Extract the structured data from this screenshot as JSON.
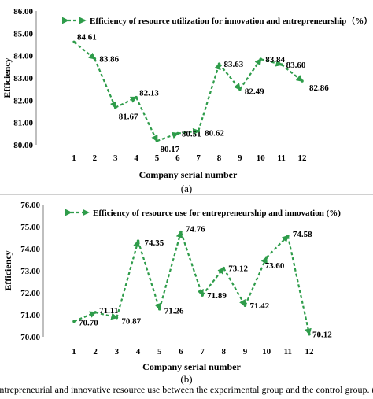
{
  "chart_data": [
    {
      "type": "line",
      "panel": "(a)",
      "legend": "Efficiency of resource utilization for innovation and entrepreneurship（%）",
      "legend_position": "top",
      "xlabel": "Company serial number",
      "ylabel": "Efficiency",
      "ylim": [
        80.0,
        86.0
      ],
      "yticks": [
        "80.00",
        "81.00",
        "82.00",
        "83.00",
        "84.00",
        "85.00",
        "86.00"
      ],
      "x": [
        "1",
        "2",
        "3",
        "4",
        "5",
        "6",
        "7",
        "8",
        "9",
        "10",
        "11",
        "12"
      ],
      "values": [
        84.61,
        83.86,
        81.67,
        82.13,
        80.17,
        80.51,
        80.62,
        83.63,
        82.49,
        83.84,
        83.6,
        82.86
      ],
      "labels": [
        "84.61",
        "83.86",
        "81.67",
        "82.13",
        "80.17",
        "80.51",
        "80.62",
        "83.63",
        "82.49",
        "83.84",
        "83.60",
        "82.86"
      ],
      "line_color": "#2e9c4a",
      "style": "dashed with arrows",
      "grid": false
    },
    {
      "type": "line",
      "panel": "(b)",
      "legend": "Efficiency of resource use for entrepreneurship and innovation (%)",
      "legend_position": "top",
      "xlabel": "Company serial number",
      "ylabel": "Efficiency",
      "ylim": [
        70.0,
        76.0
      ],
      "yticks": [
        "70.00",
        "71.00",
        "72.00",
        "73.00",
        "74.00",
        "75.00",
        "76.00"
      ],
      "x": [
        "1",
        "2",
        "3",
        "4",
        "5",
        "6",
        "7",
        "8",
        "9",
        "10",
        "11",
        "12"
      ],
      "values": [
        70.7,
        71.11,
        70.87,
        74.35,
        71.26,
        74.76,
        71.89,
        73.12,
        71.42,
        73.6,
        74.58,
        70.12
      ],
      "labels": [
        "70.70",
        "71.11",
        "70.87",
        "74.35",
        "71.26",
        "74.76",
        "71.89",
        "73.12",
        "71.42",
        "73.60",
        "74.58",
        "70.12"
      ],
      "line_color": "#2e9c4a",
      "style": "dashed with arrows",
      "grid": false
    }
  ],
  "panel_labels": [
    "(a)",
    "(b)"
  ],
  "caption": "entrepreneurial and innovative resource use between the experimental group and the control group. (a): Eff"
}
